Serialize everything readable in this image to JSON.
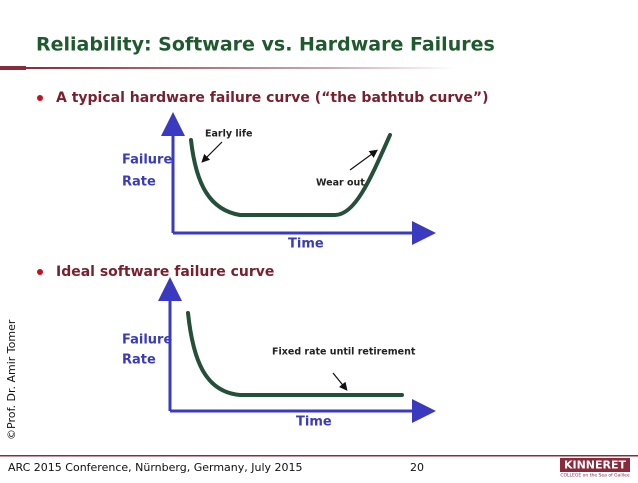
{
  "header": {
    "title": "Reliability: Software vs. Hardware Failures"
  },
  "bullets": [
    {
      "text": "A typical hardware failure curve (“the bathtub curve”)",
      "diagram": {
        "y_label_1": "Failure",
        "y_label_2": "Rate",
        "x_label": "Time",
        "annotations": [
          "Early life",
          "Wear out"
        ]
      }
    },
    {
      "text": "Ideal software failure curve",
      "diagram": {
        "y_label_1": "Failure",
        "y_label_2": "Rate",
        "x_label": "Time",
        "annotations": [
          "Fixed rate until retirement"
        ]
      }
    }
  ],
  "side_note": "©Prof. Dr. Amir Tomer",
  "footer": {
    "text": "ARC 2015 Conference, Nürnberg, Germany, July 2015",
    "page": "20",
    "logo": {
      "name": "KINNERET",
      "tagline": "COLLEGE on the Sea of Galilee"
    }
  }
}
